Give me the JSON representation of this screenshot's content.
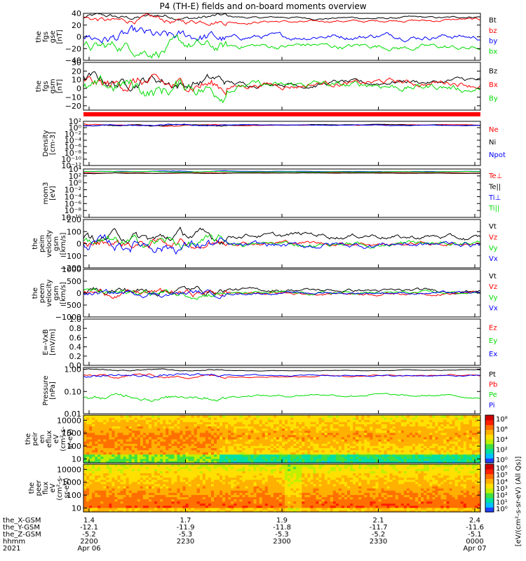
{
  "title": "P4 (TH-E) fields and on-board moments overview",
  "chart_data": [
    {
      "type": "line",
      "panel": "fgs_gse",
      "ylabel": [
        "the",
        "fgs",
        "gse",
        "[nT]"
      ],
      "ylim": [
        -40,
        40
      ],
      "yticks": [
        "40",
        "20",
        "0",
        "−20",
        "−40"
      ],
      "ytickvals": [
        40,
        20,
        0,
        -20,
        -40
      ],
      "series": [
        {
          "name": "Bt",
          "color": "#000000",
          "base": 33,
          "amp": 4,
          "noise": 3
        },
        {
          "name": "bz",
          "color": "#ff0000",
          "base": 27,
          "amp": 5,
          "noise": 4
        },
        {
          "name": "by",
          "color": "#0000ff",
          "base": 0,
          "amp": 6,
          "noise": 8
        },
        {
          "name": "bx",
          "color": "#00dd00",
          "base": -17,
          "amp": 6,
          "noise": 8
        }
      ]
    },
    {
      "type": "line",
      "panel": "fgs_gsm",
      "ylabel": [
        "the",
        "fgs",
        "gsm",
        "[nT]"
      ],
      "ylim": [
        -25,
        30
      ],
      "yticks": [
        "30",
        "20",
        "10",
        "0",
        "−10",
        "−20"
      ],
      "ytickvals": [
        30,
        20,
        10,
        0,
        -10,
        -20
      ],
      "series": [
        {
          "name": "Bz",
          "color": "#000000",
          "base": 7,
          "amp": 6,
          "noise": 5
        },
        {
          "name": "Bx",
          "color": "#ff0000",
          "base": 5,
          "amp": 6,
          "noise": 6
        },
        {
          "name": "By",
          "color": "#00dd00",
          "base": 2,
          "amp": 7,
          "noise": 7
        }
      ],
      "legend_display": [
        "Bz",
        "Bx",
        "By"
      ]
    },
    {
      "type": "line",
      "panel": "density",
      "log": true,
      "ylabel": [
        "Density",
        "[cm-3]"
      ],
      "ylim": [
        1e-12,
        100
      ],
      "yticks": [
        "10²",
        "10⁰",
        "10⁻²",
        "10⁻⁴",
        "10⁻⁶",
        "10⁻⁸",
        "10⁻¹⁰",
        "10⁻¹²"
      ],
      "ytickvals": [
        2,
        0,
        -2,
        -4,
        -6,
        -8,
        -10,
        -12
      ],
      "series": [
        {
          "name": "Ne",
          "color": "#ff0000",
          "base": 0.8,
          "amp": 0.3,
          "noise": 0.15
        },
        {
          "name": "Ni",
          "color": "#000000",
          "base": 0.8,
          "amp": 0.3,
          "noise": 0.15
        },
        {
          "name": "Npot",
          "color": "#0000ff",
          "base": 0.75,
          "amp": 0.3,
          "noise": 0.15
        }
      ]
    },
    {
      "type": "line",
      "panel": "temp",
      "log": true,
      "ylabel": [
        "mom3",
        "[eV]"
      ],
      "ylim": [
        1e-10,
        10000.0
      ],
      "yticks": [
        "10⁴",
        "10²",
        "10⁰",
        "10⁻²",
        "10⁻⁴",
        "10⁻⁶",
        "10⁻⁸",
        "10⁻¹⁰"
      ],
      "ytickvals": [
        4,
        2,
        0,
        -2,
        -4,
        -6,
        -8,
        -10
      ],
      "series": [
        {
          "name": "Te⊥",
          "color": "#ff0000",
          "base": 2.9,
          "amp": 0.15,
          "noise": 0.05
        },
        {
          "name": "Te||",
          "color": "#000000",
          "base": 2.8,
          "amp": 0.15,
          "noise": 0.05
        },
        {
          "name": "Ti⊥",
          "color": "#0000ff",
          "base": 3.3,
          "amp": 0.15,
          "noise": 0.05
        },
        {
          "name": "Ti||",
          "color": "#00dd00",
          "base": 3.2,
          "amp": 0.15,
          "noise": 0.05
        }
      ]
    },
    {
      "type": "line",
      "panel": "peim_velocity",
      "ylabel": [
        "the",
        "peim",
        "velocity",
        "gsm",
        "[km/s]"
      ],
      "ylim": [
        -200,
        200
      ],
      "yticks": [
        "200",
        "100",
        "0",
        "−100",
        "−200"
      ],
      "ytickvals": [
        200,
        100,
        0,
        -100,
        -200
      ],
      "series": [
        {
          "name": "Vt",
          "color": "#000000",
          "base": 60,
          "amp": 40,
          "noise": 35
        },
        {
          "name": "Vz",
          "color": "#ff0000",
          "base": 5,
          "amp": 20,
          "noise": 30
        },
        {
          "name": "Vy",
          "color": "#00dd00",
          "base": 0,
          "amp": 25,
          "noise": 35
        },
        {
          "name": "Vx",
          "color": "#0000ff",
          "base": -10,
          "amp": 25,
          "noise": 40
        }
      ]
    },
    {
      "type": "line",
      "panel": "peem_velocity",
      "ylabel": [
        "the",
        "peem",
        "velocity",
        "gsm",
        "[km/s]"
      ],
      "ylim": [
        -1000,
        1000
      ],
      "yticks": [
        "1000",
        "500",
        "0",
        "−500",
        "−1000"
      ],
      "ytickvals": [
        1000,
        500,
        0,
        -500,
        -1000
      ],
      "series": [
        {
          "name": "Vt",
          "color": "#000000",
          "base": 120,
          "amp": 60,
          "noise": 120
        },
        {
          "name": "Vz",
          "color": "#ff0000",
          "base": 0,
          "amp": 40,
          "noise": 110
        },
        {
          "name": "Vy",
          "color": "#00dd00",
          "base": 0,
          "amp": 40,
          "noise": 110
        },
        {
          "name": "Vx",
          "color": "#0000ff",
          "base": 0,
          "amp": 40,
          "noise": 90
        }
      ]
    },
    {
      "type": "line",
      "panel": "efield",
      "ylabel": [
        "E=-VxB",
        "[mV/m]"
      ],
      "ylim": [
        0,
        1
      ],
      "yticks": [
        "1.0",
        "0.8",
        "0.6",
        "0.4",
        "0.2",
        "0.0"
      ],
      "ytickvals": [
        1.0,
        0.8,
        0.6,
        0.4,
        0.2,
        0.0
      ],
      "series": [
        {
          "name": "Ez",
          "color": "#ff0000"
        },
        {
          "name": "Ey",
          "color": "#00dd00"
        },
        {
          "name": "Ex",
          "color": "#0000ff"
        }
      ]
    },
    {
      "type": "line",
      "panel": "pressure",
      "log": true,
      "ylabel": [
        "Pressure",
        "[nPa]"
      ],
      "ylim": [
        0.01,
        1.2
      ],
      "yticks": [
        "1.00",
        "0.10",
        "0.01"
      ],
      "ytickvals": [
        0,
        -1,
        -2
      ],
      "series": [
        {
          "name": "Pt",
          "color": "#000000",
          "base": -0.05,
          "amp": 0.05,
          "noise": 0.02
        },
        {
          "name": "Pb",
          "color": "#ff0000",
          "base": -0.3,
          "amp": 0.08,
          "noise": 0.05
        },
        {
          "name": "Pe",
          "color": "#00dd00",
          "base": -1.2,
          "amp": 0.15,
          "noise": 0.08
        },
        {
          "name": "Pi",
          "color": "#0000ff",
          "base": -0.28,
          "amp": 0.06,
          "noise": 0.05
        }
      ]
    },
    {
      "type": "heatmap",
      "panel": "peir",
      "ylabel": [
        "the",
        "peir",
        "en",
        "eflux",
        "eV",
        "(cm²-s-",
        "sr-eV)"
      ],
      "ylim": [
        5,
        25000
      ],
      "yticks": [
        "10000",
        "1000",
        "100",
        "10"
      ],
      "ytickvals": [
        10000,
        1000,
        100,
        10
      ],
      "colorbar": {
        "label": "[eV/(cm²-s-sr-eV)]",
        "ticks": [
          "10⁸",
          "10⁶",
          "10⁴",
          "10²",
          "10⁰"
        ]
      }
    },
    {
      "type": "heatmap",
      "panel": "peer",
      "ylabel": [
        "the",
        "peer",
        "flux",
        "eV",
        "(cm²-s-",
        "sr-eV)"
      ],
      "ylim": [
        5,
        25000
      ],
      "yticks": [
        "10000",
        "1000",
        "100",
        "10"
      ],
      "ytickvals": [
        10000,
        1000,
        100,
        10
      ],
      "colorbar": {
        "label": "[eV/(cm²-s-sr-eV) (All Qs)]",
        "ticks": [
          "10⁶",
          "10⁵",
          "10⁴",
          "10³",
          "10²",
          "10¹",
          "10⁰"
        ]
      }
    }
  ],
  "x_axis": {
    "row_labels": [
      "the_X-GSM",
      "the_Y-GSM",
      "the_Z-GSM",
      "hhmm",
      "2021"
    ],
    "ticks": [
      {
        "vals": [
          "1.4",
          "-12.1",
          "-5.2",
          "2200",
          "Apr 06"
        ]
      },
      {
        "vals": [
          "1.7",
          "-11.9",
          "-5.3",
          "2230",
          ""
        ]
      },
      {
        "vals": [
          "1.9",
          "-11.8",
          "-5.3",
          "2300",
          ""
        ]
      },
      {
        "vals": [
          "2.1",
          "-11.7",
          "-5.2",
          "2330",
          ""
        ]
      },
      {
        "vals": [
          "2.4",
          "-11.6",
          "-5.1",
          "0000",
          "Apr 07"
        ]
      }
    ]
  },
  "right_label": "[eV/(cm²-s-sr-eV) (All Qs)]"
}
